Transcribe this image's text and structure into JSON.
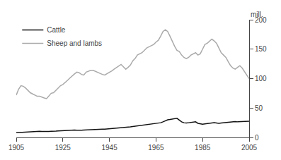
{
  "chart_data": {
    "type": "line",
    "ylabel": "mill.",
    "x": [
      1905,
      1906,
      1907,
      1908,
      1909,
      1910,
      1911,
      1912,
      1913,
      1914,
      1915,
      1916,
      1917,
      1918,
      1919,
      1920,
      1921,
      1922,
      1923,
      1924,
      1925,
      1926,
      1927,
      1928,
      1929,
      1930,
      1931,
      1932,
      1933,
      1934,
      1935,
      1936,
      1937,
      1938,
      1939,
      1940,
      1941,
      1942,
      1943,
      1944,
      1945,
      1946,
      1947,
      1948,
      1949,
      1950,
      1951,
      1952,
      1953,
      1954,
      1955,
      1956,
      1957,
      1958,
      1959,
      1960,
      1961,
      1962,
      1963,
      1964,
      1965,
      1966,
      1967,
      1968,
      1969,
      1970,
      1971,
      1972,
      1973,
      1974,
      1975,
      1976,
      1977,
      1978,
      1979,
      1980,
      1981,
      1982,
      1983,
      1984,
      1985,
      1986,
      1987,
      1988,
      1989,
      1990,
      1991,
      1992,
      1993,
      1994,
      1995,
      1996,
      1997,
      1998,
      1999,
      2000,
      2001,
      2002,
      2003,
      2004,
      2005
    ],
    "series": [
      {
        "name": "Sheep and lambs",
        "color": "#aaaaaa",
        "values": [
          72,
          82,
          88,
          87,
          84,
          80,
          76,
          74,
          72,
          70,
          70,
          68,
          67,
          66,
          70,
          75,
          76,
          80,
          84,
          88,
          90,
          93,
          97,
          101,
          105,
          108,
          111,
          110,
          107,
          106,
          111,
          113,
          114,
          114,
          112,
          110,
          108,
          107,
          106,
          108,
          111,
          113,
          116,
          119,
          121,
          124,
          120,
          116,
          119,
          123,
          130,
          134,
          140,
          142,
          144,
          148,
          152,
          154,
          156,
          158,
          162,
          165,
          172,
          180,
          183,
          180,
          172,
          163,
          155,
          148,
          146,
          140,
          136,
          134,
          136,
          140,
          142,
          144,
          140,
          142,
          150,
          158,
          160,
          164,
          167,
          164,
          160,
          152,
          144,
          140,
          136,
          129,
          122,
          118,
          116,
          119,
          122,
          118,
          112,
          105,
          100
        ]
      },
      {
        "name": "Cattle",
        "color": "#111111",
        "values": [
          8.0,
          8.3,
          8.6,
          8.9,
          9.2,
          9.5,
          9.7,
          9.9,
          10.1,
          10.3,
          10.5,
          10.3,
          10.1,
          10.0,
          10.2,
          10.5,
          10.4,
          10.8,
          11.2,
          11.5,
          11.8,
          12.0,
          12.2,
          12.5,
          12.8,
          12.5,
          12.2,
          12.0,
          12.2,
          12.5,
          12.8,
          13.0,
          13.2,
          13.5,
          13.7,
          13.5,
          13.8,
          14.0,
          14.2,
          14.5,
          14.8,
          15.0,
          15.2,
          15.5,
          16.0,
          16.5,
          17.0,
          17.5,
          17.8,
          18.0,
          18.5,
          19.0,
          19.5,
          20.0,
          20.5,
          21.0,
          21.5,
          22.0,
          22.5,
          23.0,
          23.5,
          24.0,
          25.0,
          26.5,
          28.0,
          30.0,
          30.5,
          31.0,
          32.0,
          32.5,
          29.5,
          26.5,
          25.0,
          24.5,
          25.0,
          25.5,
          26.0,
          26.5,
          24.0,
          23.0,
          22.5,
          23.0,
          23.5,
          24.0,
          24.5,
          25.0,
          24.5,
          24.0,
          24.5,
          25.0,
          25.5,
          26.0,
          26.5,
          26.8,
          27.0,
          26.5,
          26.8,
          27.0,
          26.5,
          27.0,
          27.5
        ]
      }
    ],
    "xlim": [
      1905,
      2005
    ],
    "xticks": [
      1905,
      1925,
      1945,
      1965,
      1985,
      2005
    ],
    "ylim": [
      0,
      200
    ],
    "yticks": [
      0,
      50,
      100,
      150,
      200
    ],
    "grid": false,
    "legend": "upper left"
  }
}
